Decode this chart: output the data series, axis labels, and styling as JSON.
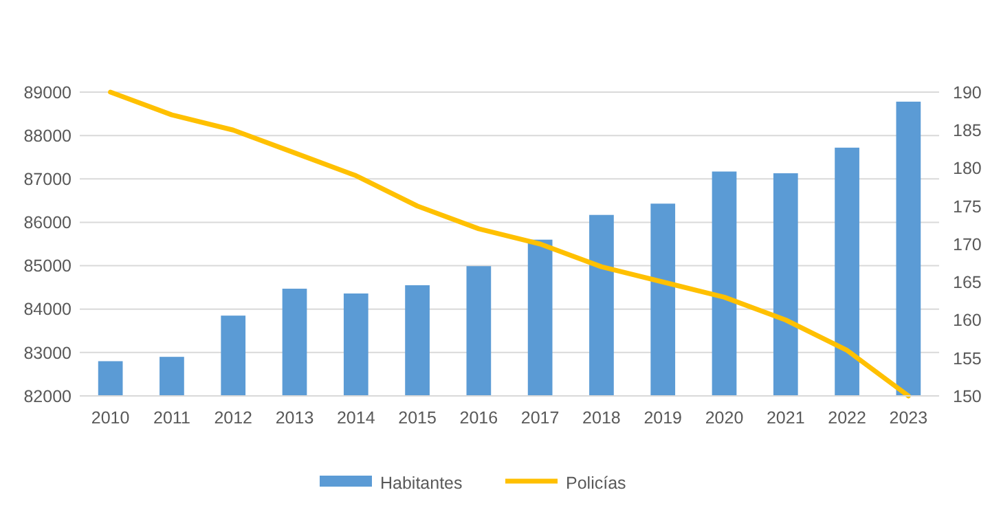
{
  "chart_data": {
    "type": "bar",
    "categories": [
      "2010",
      "2011",
      "2012",
      "2013",
      "2014",
      "2015",
      "2016",
      "2017",
      "2018",
      "2019",
      "2020",
      "2021",
      "2022",
      "2023"
    ],
    "series": [
      {
        "name": "Habitantes",
        "color": "#5b9bd5",
        "values": [
          82800,
          82900,
          83850,
          84470,
          84360,
          84550,
          84990,
          85600,
          86170,
          86430,
          87170,
          87130,
          87720,
          88780
        ]
      },
      {
        "name": "Policías",
        "type": "line",
        "axis": "y2",
        "color": "#ffc000",
        "values": [
          190,
          187,
          185,
          182,
          179,
          175,
          172,
          170,
          167,
          165,
          163,
          160,
          156,
          150
        ]
      }
    ],
    "ylim": [
      82000,
      89000
    ],
    "yticks": [
      82000,
      83000,
      84000,
      85000,
      86000,
      87000,
      88000,
      89000
    ],
    "y2lim": [
      150,
      190
    ],
    "y2ticks": [
      150,
      155,
      160,
      165,
      170,
      175,
      180,
      185,
      190
    ],
    "grid": "y",
    "legend": "bottom",
    "marker": "none",
    "line_style": "solid"
  }
}
